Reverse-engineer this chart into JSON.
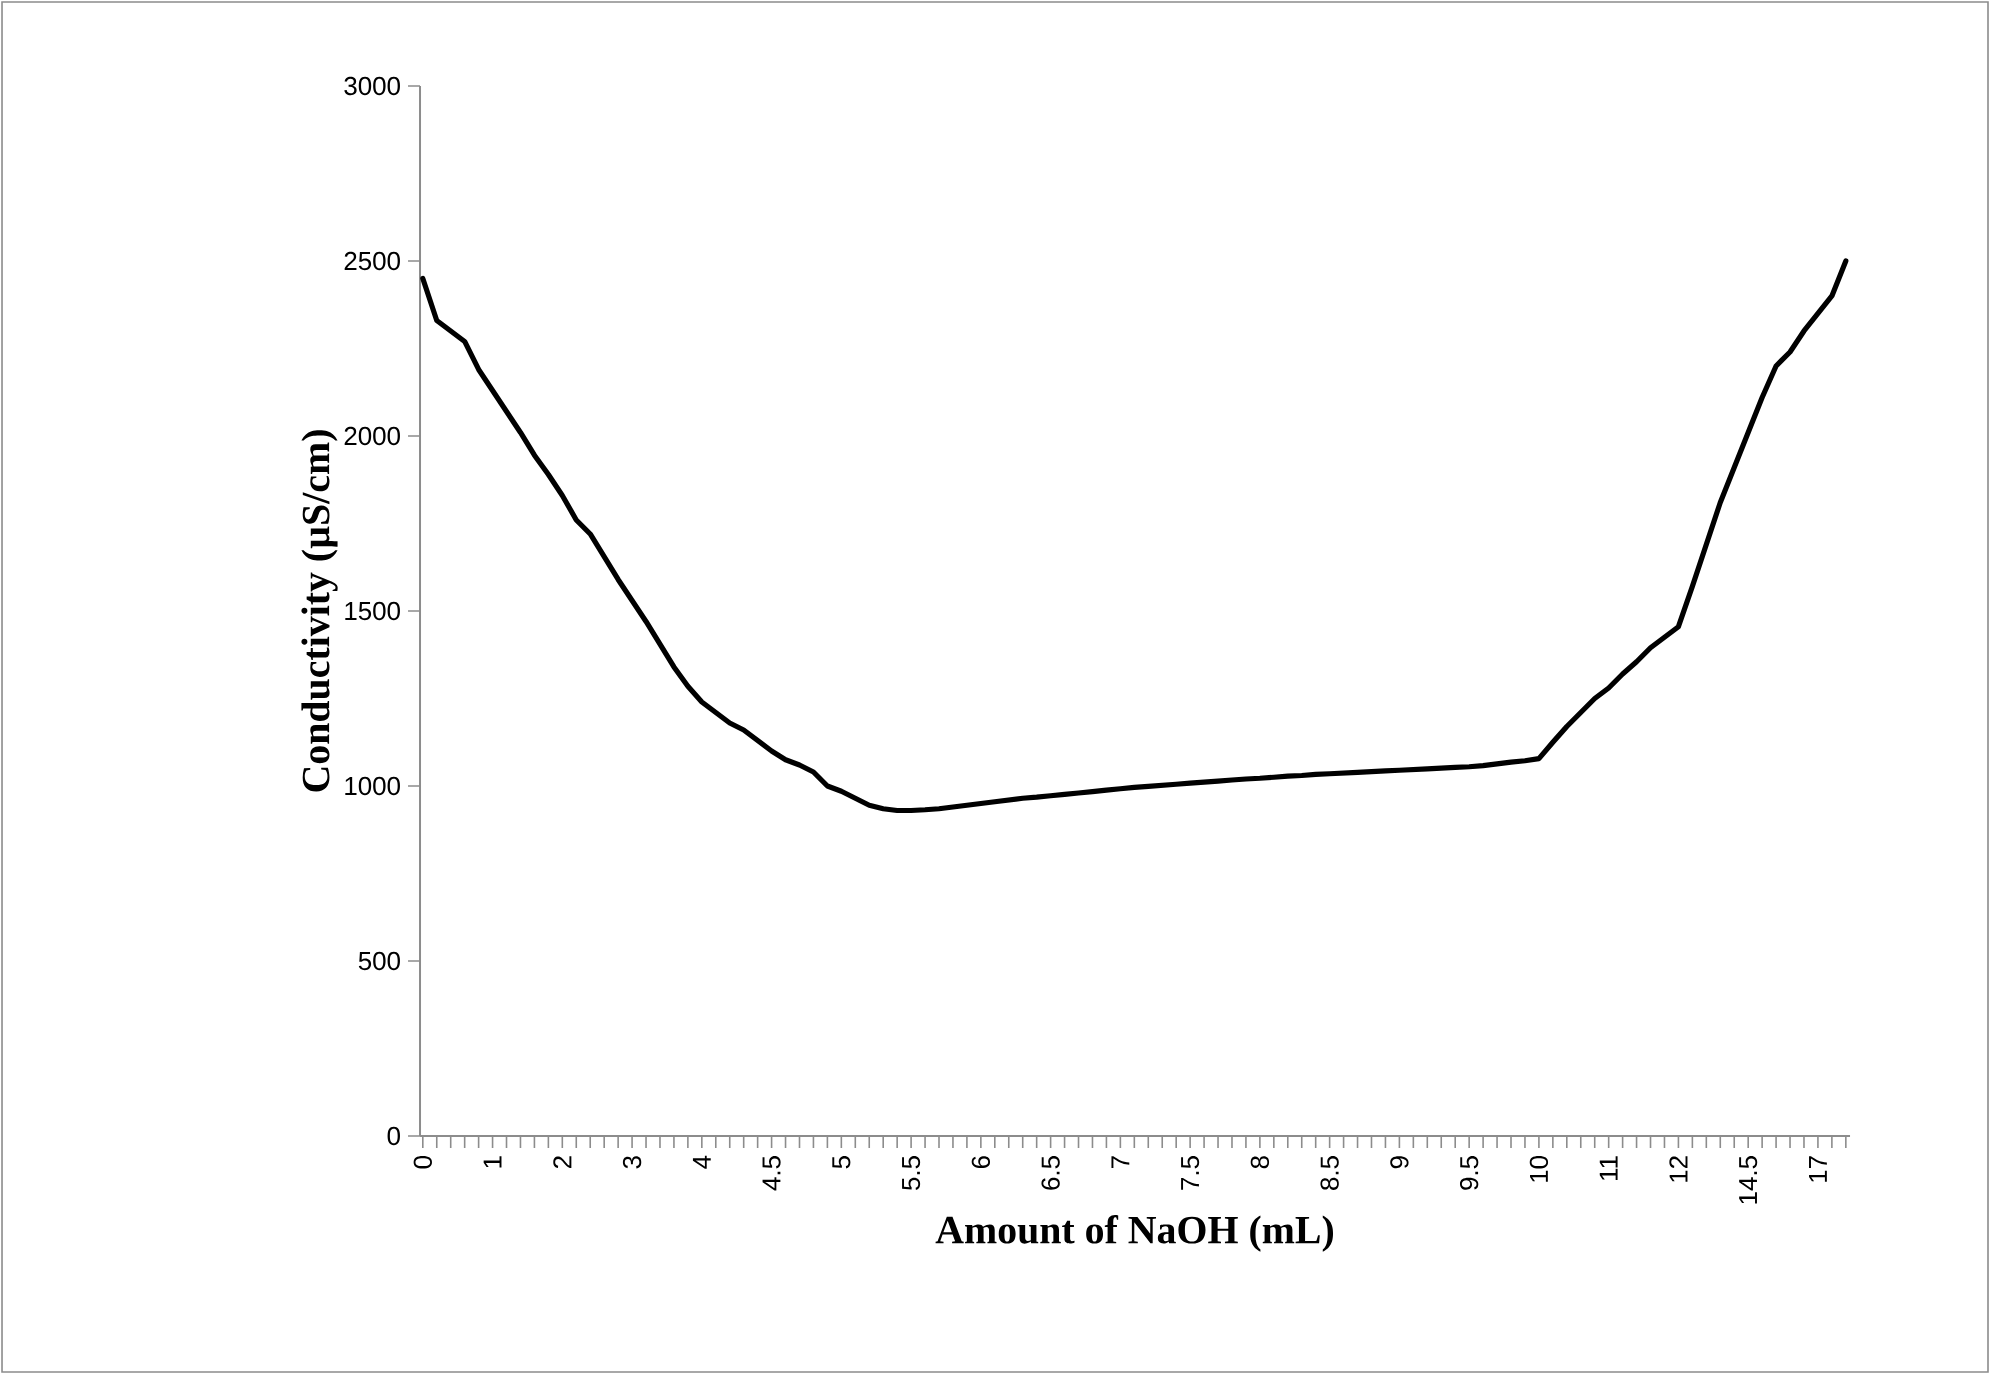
{
  "chart_data": {
    "type": "line",
    "xlabel": "Amount of NaOH  (mL)",
    "ylabel": "Conductivity (µS/cm)",
    "categories": [
      "0",
      null,
      null,
      null,
      null,
      "1",
      null,
      null,
      null,
      null,
      "2",
      null,
      null,
      null,
      null,
      "3",
      null,
      null,
      null,
      null,
      "4",
      null,
      null,
      null,
      null,
      "4.5",
      null,
      null,
      null,
      null,
      "5",
      null,
      null,
      null,
      null,
      "5.5",
      null,
      null,
      null,
      null,
      "6",
      null,
      null,
      null,
      null,
      "6.5",
      null,
      null,
      null,
      null,
      "7",
      null,
      null,
      null,
      null,
      "7.5",
      null,
      null,
      null,
      null,
      "8",
      null,
      null,
      null,
      null,
      "8.5",
      null,
      null,
      null,
      null,
      "9",
      null,
      null,
      null,
      null,
      "9.5",
      null,
      null,
      null,
      null,
      "10",
      null,
      null,
      null,
      null,
      "11",
      null,
      null,
      null,
      null,
      "12",
      null,
      null,
      null,
      null,
      "14.5",
      null,
      null,
      null,
      null,
      "17",
      null,
      null
    ],
    "series": [
      {
        "color": "#000000",
        "values": [
          2450,
          2330,
          2300,
          2270,
          2190,
          2130,
          2070,
          2010,
          1945,
          1890,
          1830,
          1760,
          1720,
          1655,
          1590,
          1530,
          1470,
          1405,
          1340,
          1285,
          1240,
          1210,
          1180,
          1160,
          1130,
          1100,
          1075,
          1060,
          1040,
          1000,
          985,
          965,
          945,
          935,
          930,
          930,
          932,
          935,
          940,
          945,
          950,
          955,
          960,
          965,
          968,
          972,
          976,
          980,
          984,
          988,
          992,
          996,
          999,
          1002,
          1005,
          1008,
          1011,
          1014,
          1017,
          1020,
          1022,
          1025,
          1028,
          1030,
          1033,
          1035,
          1037,
          1039,
          1041,
          1043,
          1045,
          1047,
          1049,
          1051,
          1053,
          1055,
          1058,
          1063,
          1068,
          1072,
          1078,
          1125,
          1170,
          1210,
          1250,
          1280,
          1320,
          1355,
          1395,
          1425,
          1455,
          1570,
          1690,
          1810,
          1910,
          2010,
          2110,
          2200,
          2240,
          2300,
          2350,
          2400,
          2500
        ]
      }
    ],
    "ylim": [
      0,
      3000
    ],
    "yticks": [
      0,
      500,
      1000,
      1500,
      2000,
      2500,
      3000
    ],
    "grid": false,
    "legend": false,
    "marker": "none",
    "line_style": "solid"
  }
}
